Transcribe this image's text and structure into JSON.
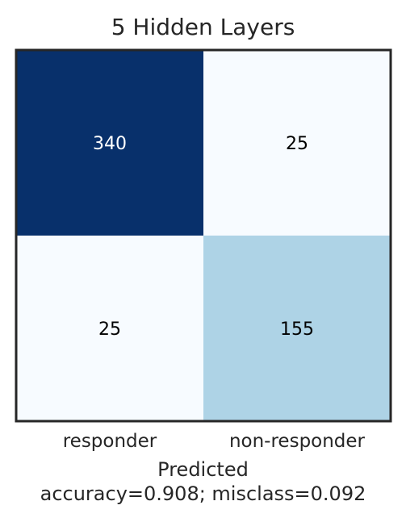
{
  "chart_data": {
    "type": "heatmap",
    "title": "5 Hidden Layers",
    "x_categories": [
      "responder",
      "non-responder"
    ],
    "y_categories": [
      "",
      ""
    ],
    "values": [
      [
        340,
        25
      ],
      [
        25,
        155
      ]
    ],
    "xlabel": "Predicted",
    "subtitle_bottom": "accuracy=0.908; misclass=0.092",
    "colormap": "Blues",
    "vmin": 25,
    "vmax": 340,
    "colorbar": false,
    "grid": false
  },
  "colors": {
    "blues_low": "#f7fbff",
    "blues_mid": "#9ecae1",
    "blues_high": "#08306b",
    "frame": "#262626",
    "text_dark": "#000000",
    "text_light": "#ffffff",
    "label_text": "#262626"
  }
}
